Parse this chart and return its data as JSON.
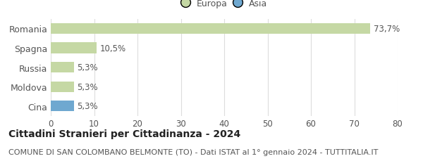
{
  "categories": [
    "Cina",
    "Moldova",
    "Russia",
    "Spagna",
    "Romania"
  ],
  "values": [
    5.3,
    5.3,
    5.3,
    10.5,
    73.7
  ],
  "labels": [
    "5,3%",
    "5,3%",
    "5,3%",
    "10,5%",
    "73,7%"
  ],
  "colors": [
    "#6fa8d0",
    "#c5d8a4",
    "#c5d8a4",
    "#c5d8a4",
    "#c5d8a4"
  ],
  "legend_items": [
    {
      "label": "Europa",
      "color": "#c5d8a4"
    },
    {
      "label": "Asia",
      "color": "#6fa8d0"
    }
  ],
  "xlim": [
    0,
    80
  ],
  "xticks": [
    0,
    10,
    20,
    30,
    40,
    50,
    60,
    70,
    80
  ],
  "title": "Cittadini Stranieri per Cittadinanza - 2024",
  "subtitle": "COMUNE DI SAN COLOMBANO BELMONTE (TO) - Dati ISTAT al 1° gennaio 2024 - TUTTITALIA.IT",
  "title_fontsize": 10,
  "subtitle_fontsize": 8,
  "bg_color": "#ffffff",
  "grid_color": "#dddddd",
  "bar_height": 0.55,
  "label_fontsize": 8.5,
  "ytick_fontsize": 9,
  "xtick_fontsize": 8.5
}
